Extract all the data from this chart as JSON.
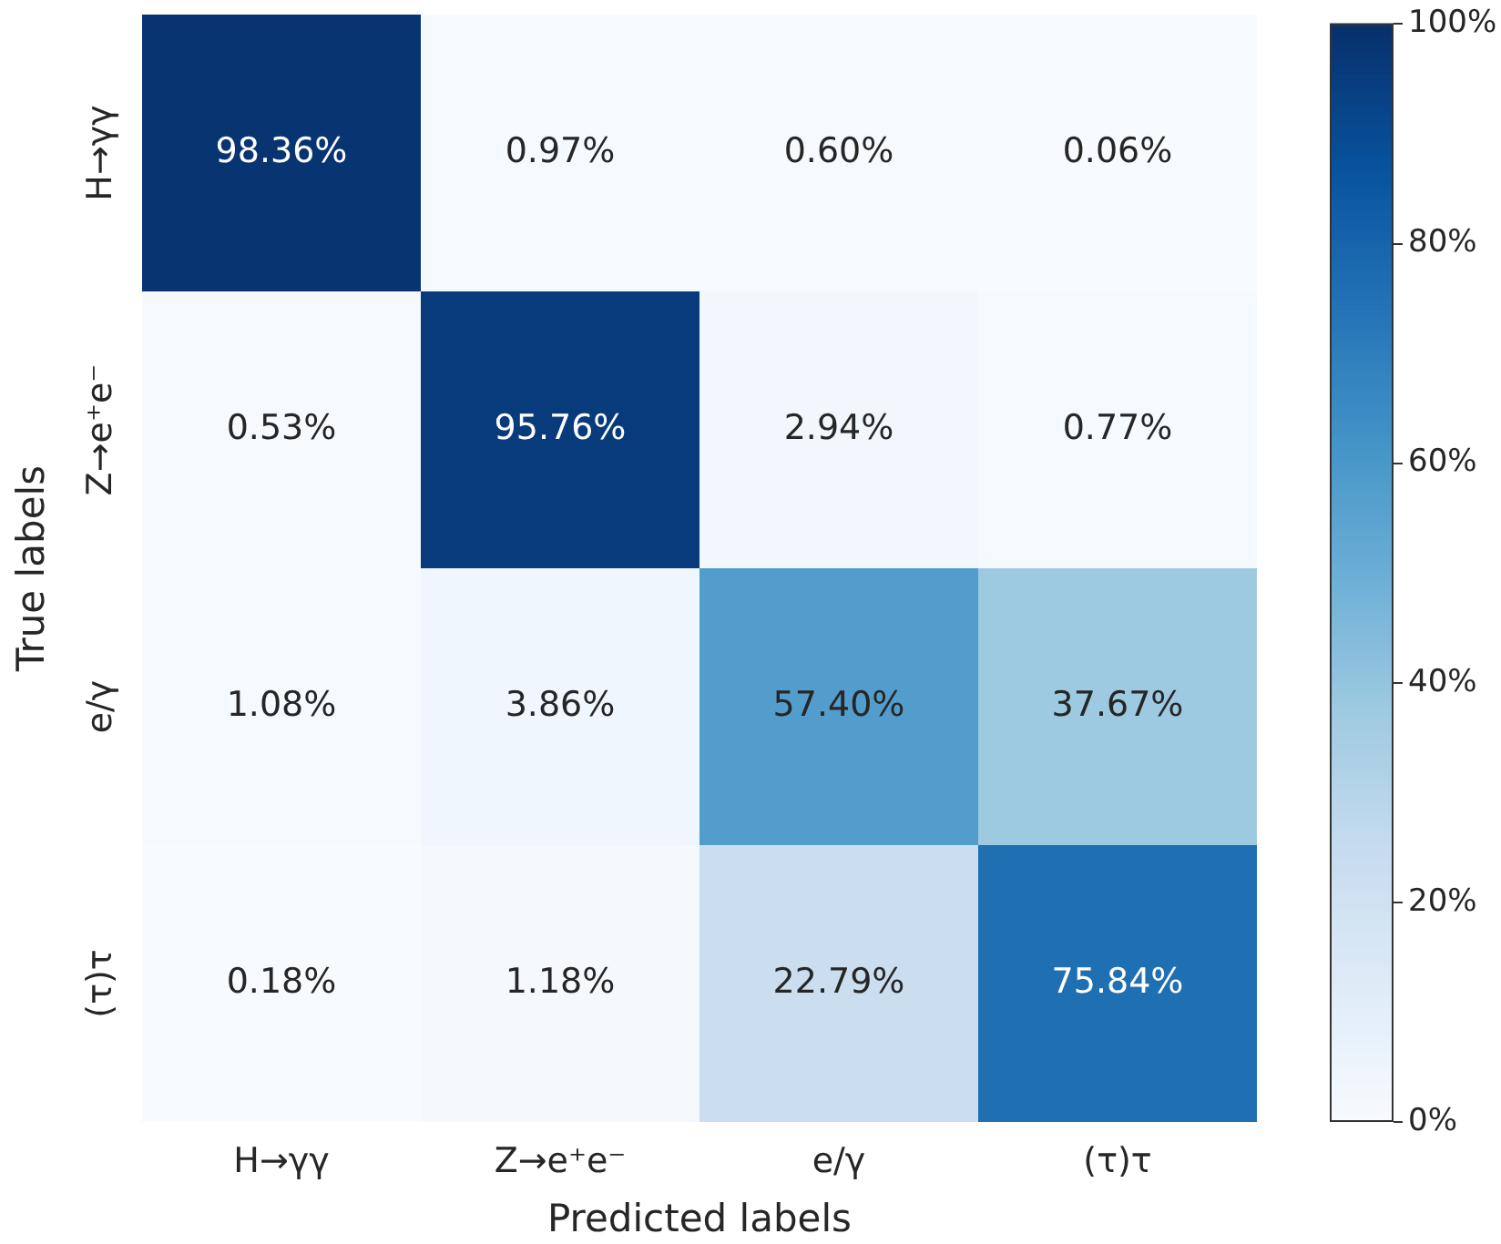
{
  "chart_data": {
    "type": "heatmap",
    "categories": [
      "H→γγ",
      "Z→e⁺e⁻",
      "e/γ",
      "(τ)τ"
    ],
    "y_categories": [
      "H→γγ",
      "Z→e⁺e⁻",
      "e/γ",
      "(τ)τ"
    ],
    "cells": [
      [
        98.36,
        0.97,
        0.6,
        0.06
      ],
      [
        0.53,
        95.76,
        2.94,
        0.77
      ],
      [
        1.08,
        3.86,
        57.4,
        37.67
      ],
      [
        0.18,
        1.18,
        22.79,
        75.84
      ]
    ],
    "cell_labels": [
      [
        "98.36%",
        "0.97%",
        "0.60%",
        "0.06%"
      ],
      [
        "0.53%",
        "95.76%",
        "2.94%",
        "0.77%"
      ],
      [
        "1.08%",
        "3.86%",
        "57.40%",
        "37.67%"
      ],
      [
        "0.18%",
        "1.18%",
        "22.79%",
        "75.84%"
      ]
    ],
    "xlabel": "Predicted labels",
    "ylabel": "True labels",
    "clim": [
      0,
      100
    ],
    "cticks": [
      {
        "value": 0,
        "label": "0%"
      },
      {
        "value": 20,
        "label": "20%"
      },
      {
        "value": 40,
        "label": "40%"
      },
      {
        "value": 60,
        "label": "60%"
      },
      {
        "value": 80,
        "label": "80%"
      },
      {
        "value": 100,
        "label": "100%"
      }
    ]
  }
}
